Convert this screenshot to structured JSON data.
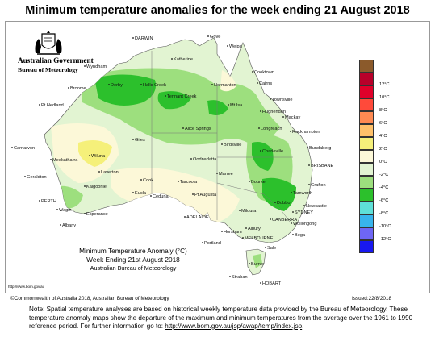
{
  "title": "Minimum temperature anomalies for the week ending 21 August 2018",
  "government": {
    "line1": "Australian Government",
    "line2": "Bureau of Meteorology"
  },
  "map_caption": {
    "line1": "Minimum Temperature Anomaly (°C)",
    "line2": "Week Ending 21st August 2018",
    "line3": "Australian Bureau of Meteorology"
  },
  "source_url": "http://www.bom.gov.au",
  "copyright": "©Commonwealth of Australia 2018, Australian Bureau of Meteorology",
  "issued": "Issued:22/8/2018",
  "note": {
    "text": "Note: Spatial temperature analyses are based on historical weekly temperature data provided by the Bureau of Meteorology. These temperature anomaly maps show the departure of the maximum and minimum temperatures from the average over the 1961 to 1990 reference period. For further information go to:",
    "link": "http://www.bom.gov.au/jsp/awap/temp/index.jsp",
    "end": "."
  },
  "legend": [
    {
      "label": "",
      "color": "#8b5a2b"
    },
    {
      "label": "12°C",
      "color": "#b8002a"
    },
    {
      "label": "10°C",
      "color": "#e0002a"
    },
    {
      "label": "8°C",
      "color": "#ff4a3a"
    },
    {
      "label": "6°C",
      "color": "#ff8a52"
    },
    {
      "label": "4°C",
      "color": "#ffc16a"
    },
    {
      "label": "2°C",
      "color": "#f5f07a"
    },
    {
      "label": "0°C",
      "color": "#fcf8d8"
    },
    {
      "label": "-2°C",
      "color": "#e2f4d2"
    },
    {
      "label": "-4°C",
      "color": "#9ddf7e"
    },
    {
      "label": "-6°C",
      "color": "#2cc02c"
    },
    {
      "label": "-8°C",
      "color": "#5ee0d8"
    },
    {
      "label": "-10°C",
      "color": "#38b4ec"
    },
    {
      "label": "-12°C",
      "color": "#6e66f4"
    },
    {
      "label": "",
      "color": "#1818f0"
    }
  ],
  "places": [
    "DARWIN",
    "Gove",
    "Weipa",
    "Katherine",
    "Wyndham",
    "Cooktown",
    "Derby",
    "Halls Creek",
    "Cairns",
    "Broome",
    "Normanton",
    "Tennant Creek",
    "Townsville",
    "Pt Hedland",
    "Mt Isa",
    "Hughenden",
    "Mackay",
    "Alice Springs",
    "Longreach",
    "Rockhampton",
    "Carnarvon",
    "Giles",
    "Birdsville",
    "Charleville",
    "Bundaberg",
    "Meekatharra",
    "Wiluna",
    "Oodnadatta",
    "BRISBANE",
    "Geraldton",
    "Laverton",
    "Marree",
    "Bourke",
    "Grafton",
    "Cook",
    "Tarcoola",
    "Kalgoorlie",
    "Eucla",
    "Ceduna",
    "Pt Augusta",
    "Tamworth",
    "PERTH",
    "Dubbo",
    "Newcastle",
    "SYDNEY",
    "Wagin",
    "Esperance",
    "ADELAIDE",
    "Mildura",
    "CANBERRA",
    "Wollongong",
    "Albany",
    "Horsham",
    "Albury",
    "Bega",
    "Portland",
    "MELBOURNE",
    "Sale",
    "Burnie",
    "Strahan",
    "HOBART"
  ]
}
